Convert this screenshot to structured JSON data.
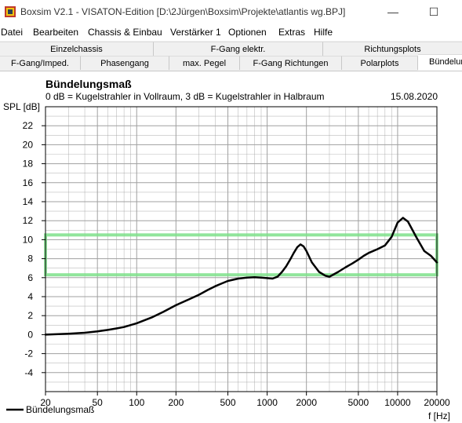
{
  "window": {
    "title": "Boxsim V2.1 - VISATON-Edition [D:\\2Jürgen\\Boxsim\\Projekte\\atlantis wg.BPJ]",
    "minimize_label": "—",
    "maximize_label": "☐"
  },
  "menu": [
    "Datei",
    "Bearbeiten",
    "Chassis & Einbau",
    "Verstärker 1",
    "Optionen",
    "Extras",
    "Hilfe"
  ],
  "tabs_row1": [
    "Einzelchassis",
    "F-Gang elektr.",
    "Richtungsplots"
  ],
  "tabs_row2": [
    "F-Gang/Imped.",
    "Phasengang",
    "max. Pegel",
    "F-Gang Richtungen",
    "Polarplots",
    "Bündelun"
  ],
  "active_tab": "Bündelun",
  "colors": {
    "curve": "#000000",
    "tolerance_band": "#7ee08a",
    "grid": "#a0a0a0",
    "tab_bg": "#f0f0f0"
  },
  "chart_data": {
    "type": "line",
    "title": "Bündelungsmaß",
    "subtitle": "0 dB = Kugelstrahler in Vollraum, 3 dB = Kugelstrahler in Halbraum",
    "date": "15.08.2020",
    "ylabel": "SPL [dB]",
    "xlabel": "f [Hz]",
    "x_scale": "log",
    "xlim": [
      20,
      20000
    ],
    "ylim": [
      -6,
      24
    ],
    "grid": true,
    "x_ticks": [
      20,
      50,
      100,
      200,
      500,
      1000,
      2000,
      5000,
      10000,
      20000
    ],
    "y_ticks": [
      -4,
      -2,
      0,
      2,
      4,
      6,
      8,
      10,
      12,
      14,
      16,
      18,
      20,
      22
    ],
    "legend_position": "bottom-left",
    "tolerance_band": {
      "x_range": [
        20,
        20000
      ],
      "y_range": [
        6.3,
        10.5
      ]
    },
    "series": [
      {
        "name": "Bündelungsmaß",
        "x": [
          20,
          30,
          40,
          50,
          60,
          70,
          80,
          100,
          130,
          160,
          200,
          250,
          300,
          350,
          400,
          450,
          500,
          600,
          700,
          800,
          900,
          1000,
          1100,
          1200,
          1300,
          1400,
          1500,
          1600,
          1700,
          1800,
          1900,
          2000,
          2200,
          2500,
          2800,
          3000,
          3500,
          4000,
          4500,
          5000,
          5500,
          6000,
          7000,
          8000,
          9000,
          10000,
          11000,
          12000,
          14000,
          16000,
          18000,
          20000
        ],
        "y": [
          0.0,
          0.1,
          0.2,
          0.35,
          0.5,
          0.65,
          0.8,
          1.2,
          1.8,
          2.4,
          3.1,
          3.7,
          4.2,
          4.7,
          5.1,
          5.4,
          5.65,
          5.9,
          6.0,
          6.05,
          6.0,
          5.95,
          5.9,
          6.1,
          6.6,
          7.2,
          7.9,
          8.6,
          9.2,
          9.5,
          9.3,
          8.8,
          7.6,
          6.6,
          6.2,
          6.1,
          6.6,
          7.1,
          7.5,
          7.9,
          8.3,
          8.6,
          9.0,
          9.4,
          10.3,
          11.8,
          12.3,
          11.9,
          10.2,
          8.8,
          8.3,
          7.6
        ]
      }
    ]
  }
}
